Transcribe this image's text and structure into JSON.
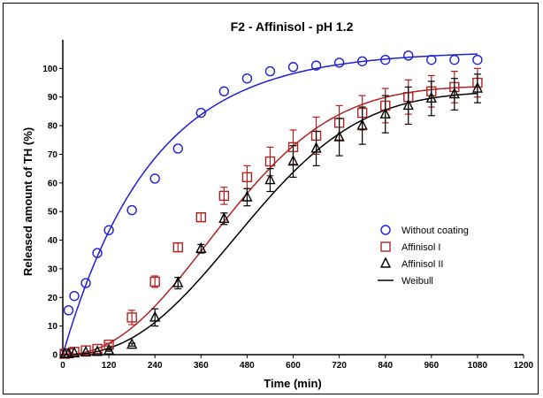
{
  "chart_data": {
    "type": "scatter",
    "title": "F2 - Affinisol - pH 1.2",
    "xlabel": "Time (min)",
    "ylabel": "Released amount of TH (%)",
    "xlim": [
      0,
      1200
    ],
    "ylim": [
      0,
      110
    ],
    "xticks": [
      0,
      120,
      240,
      360,
      480,
      600,
      720,
      840,
      960,
      1080,
      1200
    ],
    "yticks": [
      0,
      10,
      20,
      30,
      40,
      50,
      60,
      70,
      80,
      90,
      100
    ],
    "grid": false,
    "legend_position": "right",
    "series": [
      {
        "name": "Without coating",
        "marker": "circle",
        "color": "#1f1fd6",
        "x": [
          5,
          15,
          30,
          60,
          90,
          120,
          180,
          240,
          300,
          360,
          420,
          480,
          540,
          600,
          660,
          720,
          780,
          840,
          900,
          960,
          1020,
          1080
        ],
        "y": [
          0.5,
          15.5,
          20.5,
          25,
          35.5,
          43.5,
          50.5,
          61.5,
          72,
          84.5,
          92,
          96.5,
          99,
          100.5,
          101,
          102,
          102.5,
          103,
          104.5,
          103,
          103,
          103
        ],
        "err": [
          0,
          0,
          0,
          0,
          0,
          0,
          0,
          0,
          0,
          0,
          0,
          0,
          0,
          0,
          0,
          0,
          0,
          0,
          0,
          0,
          0,
          0
        ]
      },
      {
        "name": "Affinisol I",
        "marker": "square",
        "color": "#b22222",
        "x": [
          5,
          15,
          30,
          60,
          90,
          120,
          180,
          240,
          300,
          360,
          420,
          480,
          540,
          600,
          660,
          720,
          780,
          840,
          900,
          960,
          1020,
          1080
        ],
        "y": [
          0.3,
          0.5,
          1,
          1.5,
          2,
          3.5,
          13,
          25.5,
          37.5,
          48,
          55.5,
          62,
          67.5,
          72.5,
          76.5,
          81,
          84.5,
          87,
          90,
          92,
          93.5,
          95
        ],
        "err": [
          0,
          0,
          0,
          0,
          0,
          0.5,
          2.5,
          2,
          1.5,
          1.5,
          3,
          4,
          5,
          6,
          6.5,
          6,
          6,
          6,
          6,
          5.5,
          5.5,
          5
        ]
      },
      {
        "name": "Affinisol II",
        "marker": "triangle",
        "color": "#000000",
        "x": [
          5,
          15,
          30,
          60,
          90,
          120,
          180,
          240,
          300,
          360,
          420,
          480,
          540,
          600,
          660,
          720,
          780,
          840,
          900,
          960,
          1020,
          1080
        ],
        "y": [
          0.2,
          0.3,
          0.5,
          0.8,
          1,
          1.5,
          3.5,
          13,
          25,
          37,
          47.5,
          55,
          61,
          67.5,
          72,
          76,
          80,
          84,
          87,
          89.5,
          91,
          93
        ],
        "err": [
          0,
          0,
          0,
          0,
          0,
          0.3,
          0.5,
          3,
          2,
          1.5,
          2,
          3,
          4,
          5.5,
          6,
          6.5,
          6.5,
          6.5,
          6.5,
          6,
          5.5,
          5
        ]
      }
    ],
    "fits": [
      {
        "name": "",
        "color": "#1f1fd6",
        "model": "weibull",
        "a": 106,
        "b": 230,
        "c": 1.0,
        "lag": 0,
        "xmax": 1080
      },
      {
        "name": "",
        "color": "#b22222",
        "model": "weibull",
        "a": 94,
        "b": 500,
        "c": 2.2,
        "lag": 0,
        "xmax": 1080
      },
      {
        "name": "",
        "color": "#000000",
        "model": "weibull",
        "a": 92,
        "b": 560,
        "c": 2.4,
        "lag": 0,
        "xmax": 1080
      }
    ],
    "legend": [
      {
        "label": "Without coating",
        "marker": "circle",
        "color": "#1f1fd6"
      },
      {
        "label": "Affinisol I",
        "marker": "square",
        "color": "#b22222"
      },
      {
        "label": "Affinisol II",
        "marker": "triangle",
        "color": "#000000"
      },
      {
        "label": "Weibull",
        "marker": "line",
        "color": "#000000"
      }
    ]
  }
}
